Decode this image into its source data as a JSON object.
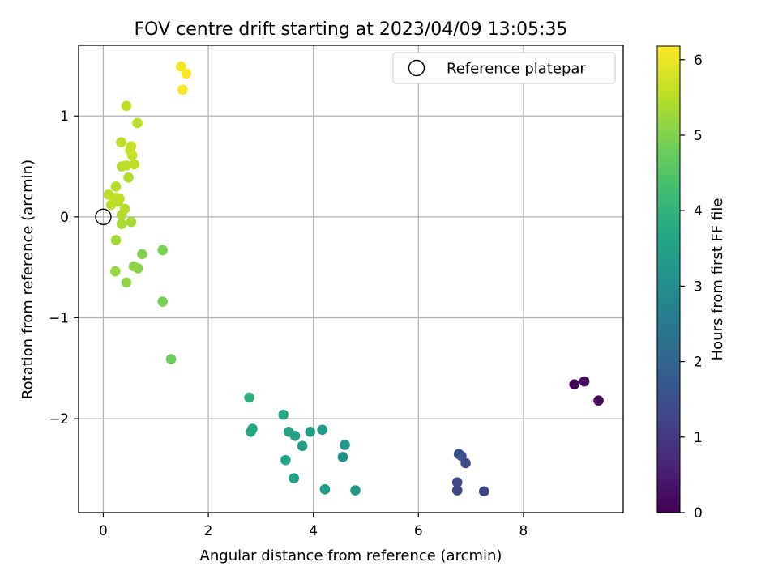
{
  "chart_data": {
    "type": "scatter",
    "title": "FOV centre drift starting at 2023/04/09 13:05:35",
    "xlabel": "Angular distance from reference (arcmin)",
    "ylabel": "Rotation from reference (arcmin)",
    "xlim": [
      -0.47,
      9.9
    ],
    "ylim": [
      -2.93,
      1.7
    ],
    "xticks": [
      0,
      2,
      4,
      6,
      8
    ],
    "yticks": [
      -2,
      -1,
      0,
      1
    ],
    "grid": true,
    "legend": {
      "placement": "top-right",
      "entries": [
        "Reference platepar"
      ]
    },
    "reference_point": {
      "x": 0,
      "y": 0
    },
    "colorbar": {
      "label": "Hours from first FF file",
      "colormap": "viridis",
      "range": [
        0,
        6.18
      ],
      "ticks": [
        0,
        1,
        2,
        3,
        4,
        5,
        6
      ]
    },
    "series": [
      {
        "points": [
          {
            "x": 8.97,
            "y": -1.66,
            "c": 0.05
          },
          {
            "x": 9.16,
            "y": -1.63,
            "c": 0.15
          },
          {
            "x": 9.43,
            "y": -1.82,
            "c": 0.1
          },
          {
            "x": 6.77,
            "y": -2.35,
            "c": 1.5
          },
          {
            "x": 6.82,
            "y": -2.37,
            "c": 1.55
          },
          {
            "x": 6.9,
            "y": -2.44,
            "c": 1.4
          },
          {
            "x": 6.74,
            "y": -2.63,
            "c": 1.35
          },
          {
            "x": 6.74,
            "y": -2.71,
            "c": 1.3
          },
          {
            "x": 7.25,
            "y": -2.72,
            "c": 1.25
          },
          {
            "x": 2.78,
            "y": -1.79,
            "c": 3.9
          },
          {
            "x": 2.81,
            "y": -2.13,
            "c": 3.8
          },
          {
            "x": 2.84,
            "y": -2.1,
            "c": 3.75
          },
          {
            "x": 3.43,
            "y": -1.96,
            "c": 3.7
          },
          {
            "x": 3.53,
            "y": -2.13,
            "c": 3.6
          },
          {
            "x": 3.65,
            "y": -2.17,
            "c": 3.5
          },
          {
            "x": 3.79,
            "y": -2.27,
            "c": 3.45
          },
          {
            "x": 3.47,
            "y": -2.41,
            "c": 3.65
          },
          {
            "x": 3.94,
            "y": -2.13,
            "c": 3.4
          },
          {
            "x": 4.17,
            "y": -2.11,
            "c": 3.3
          },
          {
            "x": 3.63,
            "y": -2.59,
            "c": 3.55
          },
          {
            "x": 4.22,
            "y": -2.7,
            "c": 3.35
          },
          {
            "x": 4.6,
            "y": -2.26,
            "c": 3.2
          },
          {
            "x": 4.56,
            "y": -2.38,
            "c": 3.1
          },
          {
            "x": 4.8,
            "y": -2.71,
            "c": 3.25
          },
          {
            "x": 1.29,
            "y": -1.41,
            "c": 4.8
          },
          {
            "x": 1.13,
            "y": -0.84,
            "c": 4.9
          },
          {
            "x": 1.13,
            "y": -0.33,
            "c": 4.95
          },
          {
            "x": 0.74,
            "y": -0.37,
            "c": 5.0
          },
          {
            "x": 0.66,
            "y": -0.51,
            "c": 5.05
          },
          {
            "x": 0.58,
            "y": -0.49,
            "c": 5.1
          },
          {
            "x": 0.44,
            "y": -0.65,
            "c": 5.15
          },
          {
            "x": 0.23,
            "y": -0.54,
            "c": 5.2
          },
          {
            "x": 0.24,
            "y": -0.23,
            "c": 5.3
          },
          {
            "x": 0.53,
            "y": -0.05,
            "c": 5.35
          },
          {
            "x": 0.35,
            "y": -0.07,
            "c": 5.4
          },
          {
            "x": 0.35,
            "y": 0.02,
            "c": 5.45
          },
          {
            "x": 0.41,
            "y": 0.08,
            "c": 5.5
          },
          {
            "x": 0.15,
            "y": 0.12,
            "c": 5.55
          },
          {
            "x": 0.28,
            "y": 0.15,
            "c": 5.5
          },
          {
            "x": 0.31,
            "y": 0.18,
            "c": 5.6
          },
          {
            "x": 0.1,
            "y": 0.22,
            "c": 5.55
          },
          {
            "x": 0.24,
            "y": 0.19,
            "c": 5.6
          },
          {
            "x": 0.24,
            "y": 0.3,
            "c": 5.5
          },
          {
            "x": 0.48,
            "y": 0.39,
            "c": 5.45
          },
          {
            "x": 0.35,
            "y": 0.5,
            "c": 5.5
          },
          {
            "x": 0.44,
            "y": 0.51,
            "c": 5.55
          },
          {
            "x": 0.59,
            "y": 0.52,
            "c": 5.6
          },
          {
            "x": 0.55,
            "y": 0.61,
            "c": 5.65
          },
          {
            "x": 0.51,
            "y": 0.66,
            "c": 5.7
          },
          {
            "x": 0.53,
            "y": 0.7,
            "c": 5.65
          },
          {
            "x": 0.34,
            "y": 0.74,
            "c": 5.6
          },
          {
            "x": 0.65,
            "y": 0.93,
            "c": 5.55
          },
          {
            "x": 0.44,
            "y": 1.1,
            "c": 5.6
          },
          {
            "x": 1.48,
            "y": 1.49,
            "c": 6.1
          },
          {
            "x": 1.58,
            "y": 1.42,
            "c": 6.18
          },
          {
            "x": 1.51,
            "y": 1.26,
            "c": 6.15
          }
        ]
      }
    ]
  }
}
